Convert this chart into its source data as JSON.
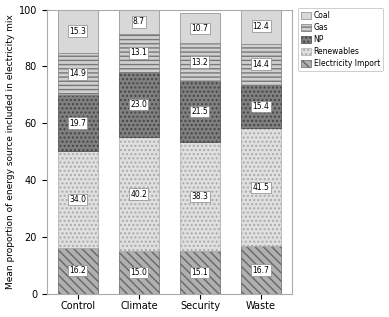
{
  "categories": [
    "Control",
    "Climate",
    "Security",
    "Waste"
  ],
  "segments": {
    "Electricity Import": [
      16.2,
      15.0,
      15.1,
      16.7
    ],
    "Renewables": [
      34.0,
      40.2,
      38.3,
      41.5
    ],
    "NP": [
      19.7,
      23.0,
      21.5,
      15.4
    ],
    "Gas": [
      14.9,
      13.1,
      13.2,
      14.4
    ],
    "Coal": [
      15.3,
      8.7,
      10.7,
      12.4
    ]
  },
  "segment_order": [
    "Electricity Import",
    "Renewables",
    "NP",
    "Gas",
    "Coal"
  ],
  "colors": {
    "Coal": "#d8d8d8",
    "Gas": "#d0d0d0",
    "NP": "#888888",
    "Renewables": "#e8e8e8",
    "Electricity Import": "#c0c0c0"
  },
  "hatches": {
    "Coal": "",
    "Gas": "======",
    "NP": ".....",
    "Renewables": "......",
    "Electricity Import": "\\\\\\\\"
  },
  "ylabel": "Mean proportion of energy source included in electricity mix",
  "ylim": [
    0,
    100
  ],
  "yticks": [
    0,
    20,
    40,
    60,
    80,
    100
  ],
  "legend_labels": [
    "Coal",
    "Gas",
    "NP",
    "Renewables",
    "Electricity Import"
  ],
  "bar_width": 0.65,
  "label_fontsize": 5.5
}
